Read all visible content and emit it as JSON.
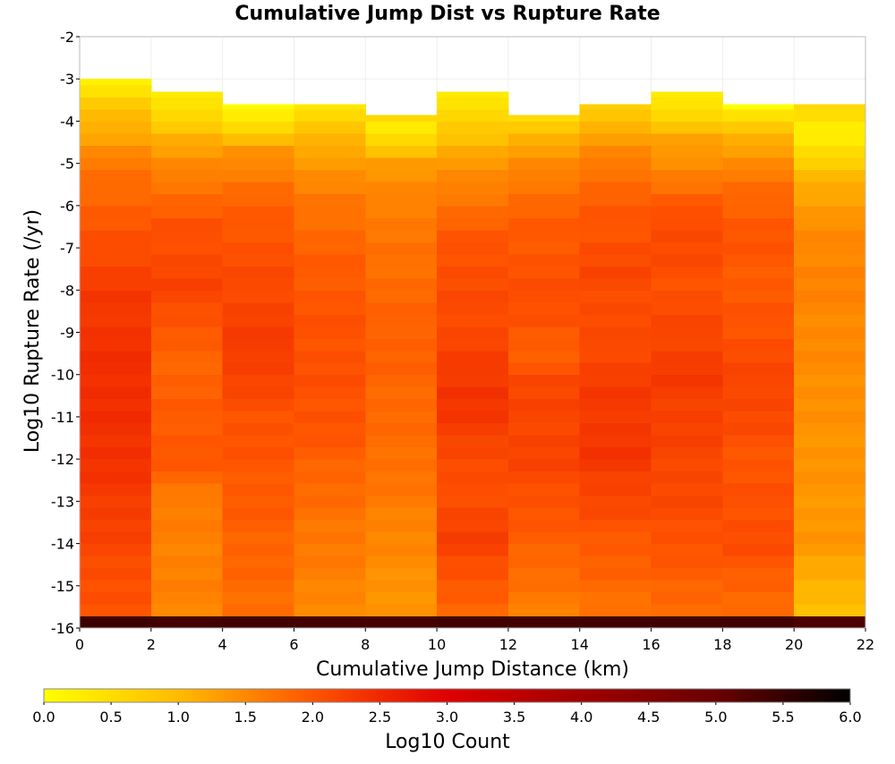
{
  "chart_data": {
    "type": "heatmap",
    "title": "Cumulative Jump Dist vs Rupture Rate",
    "xlabel": "Cumulative Jump Distance (km)",
    "ylabel": "Log10 Rupture Rate (/yr)",
    "xlim": [
      0,
      22
    ],
    "ylim": [
      -16,
      -2
    ],
    "x_ticks": [
      0,
      2,
      4,
      6,
      8,
      10,
      12,
      14,
      16,
      18,
      20,
      22
    ],
    "y_ticks": [
      -2,
      -3,
      -4,
      -5,
      -6,
      -7,
      -8,
      -9,
      -10,
      -11,
      -12,
      -13,
      -14,
      -15,
      -16
    ],
    "x_bin_edges": [
      0,
      2,
      4,
      6,
      8,
      10,
      12,
      14,
      16,
      18,
      20,
      22
    ],
    "y_bin_size": 0.2857,
    "column_profiles": [
      {
        "x_range": [
          0,
          2
        ],
        "profile": [
          [
            -15.9,
            6.0
          ],
          [
            -15.6,
            2.0
          ],
          [
            -12,
            2.4
          ],
          [
            -10,
            2.45
          ],
          [
            -8,
            2.3
          ],
          [
            -6,
            1.9
          ],
          [
            -5,
            1.65
          ],
          [
            -4.3,
            1.2
          ],
          [
            -3.6,
            0.8
          ],
          [
            -3.1,
            0.2
          ]
        ]
      },
      {
        "x_range": [
          2,
          4
        ],
        "profile": [
          [
            -15.9,
            6.0
          ],
          [
            -15.6,
            1.55
          ],
          [
            -13,
            1.6
          ],
          [
            -12,
            2.0
          ],
          [
            -9.5,
            1.85
          ],
          [
            -8,
            2.2
          ],
          [
            -6.5,
            2.05
          ],
          [
            -5.5,
            1.7
          ],
          [
            -4.5,
            1.2
          ],
          [
            -3.9,
            0.6
          ],
          [
            -3.3,
            0.25
          ]
        ]
      },
      {
        "x_range": [
          4,
          6
        ],
        "profile": [
          [
            -15.9,
            6.0
          ],
          [
            -15.6,
            1.75
          ],
          [
            -13,
            1.95
          ],
          [
            -11,
            2.05
          ],
          [
            -9.5,
            2.3
          ],
          [
            -8,
            2.15
          ],
          [
            -6.5,
            2.0
          ],
          [
            -5.5,
            1.75
          ],
          [
            -4.6,
            1.3
          ],
          [
            -4.2,
            0.6
          ],
          [
            -3.6,
            0.0
          ]
        ]
      },
      {
        "x_range": [
          6,
          8
        ],
        "profile": [
          [
            -15.9,
            6.0
          ],
          [
            -15.6,
            1.5
          ],
          [
            -13,
            1.75
          ],
          [
            -11,
            2.05
          ],
          [
            -9,
            2.05
          ],
          [
            -7.5,
            1.95
          ],
          [
            -6,
            1.7
          ],
          [
            -5,
            1.35
          ],
          [
            -4.2,
            0.9
          ],
          [
            -3.6,
            0.3
          ]
        ]
      },
      {
        "x_range": [
          8,
          10
        ],
        "profile": [
          [
            -15.9,
            6.0
          ],
          [
            -15.6,
            1.35
          ],
          [
            -14,
            1.5
          ],
          [
            -12,
            1.75
          ],
          [
            -9,
            1.9
          ],
          [
            -7.5,
            1.75
          ],
          [
            -6,
            1.6
          ],
          [
            -5,
            1.3
          ],
          [
            -4.6,
            0.8
          ],
          [
            -4.2,
            0.25
          ],
          [
            -3.9,
            0.6
          ]
        ]
      },
      {
        "x_range": [
          10,
          12
        ],
        "profile": [
          [
            -15.9,
            6.0
          ],
          [
            -15.6,
            1.8
          ],
          [
            -14,
            2.25
          ],
          [
            -12.5,
            2.05
          ],
          [
            -10.5,
            2.4
          ],
          [
            -9,
            2.15
          ],
          [
            -7,
            2.05
          ],
          [
            -6,
            1.75
          ],
          [
            -5,
            1.35
          ],
          [
            -4.2,
            0.8
          ],
          [
            -3.4,
            0.3
          ]
        ]
      },
      {
        "x_range": [
          12,
          14
        ],
        "profile": [
          [
            -15.9,
            6.0
          ],
          [
            -15.6,
            1.6
          ],
          [
            -14,
            1.9
          ],
          [
            -12,
            2.2
          ],
          [
            -10,
            2.15
          ],
          [
            -9.5,
            1.85
          ],
          [
            -8.5,
            2.1
          ],
          [
            -6.5,
            1.95
          ],
          [
            -5.5,
            1.7
          ],
          [
            -4.5,
            1.2
          ],
          [
            -3.9,
            0.5
          ]
        ]
      },
      {
        "x_range": [
          14,
          16
        ],
        "profile": [
          [
            -15.9,
            6.0
          ],
          [
            -15.6,
            1.7
          ],
          [
            -13.5,
            2.05
          ],
          [
            -12,
            2.35
          ],
          [
            -10.5,
            2.3
          ],
          [
            -9,
            2.1
          ],
          [
            -7.5,
            2.15
          ],
          [
            -6.3,
            2.0
          ],
          [
            -5.2,
            1.75
          ],
          [
            -4.4,
            1.3
          ],
          [
            -3.7,
            0.7
          ]
        ]
      },
      {
        "x_range": [
          16,
          18
        ],
        "profile": [
          [
            -15.9,
            6.0
          ],
          [
            -15.6,
            1.8
          ],
          [
            -13.5,
            2.1
          ],
          [
            -11.5,
            2.2
          ],
          [
            -10,
            2.3
          ],
          [
            -8,
            2.05
          ],
          [
            -6.3,
            2.15
          ],
          [
            -5.5,
            1.7
          ],
          [
            -4.4,
            1.2
          ],
          [
            -3.9,
            0.6
          ],
          [
            -3.4,
            0.3
          ]
        ]
      },
      {
        "x_range": [
          18,
          20
        ],
        "profile": [
          [
            -15.9,
            6.0
          ],
          [
            -15.6,
            1.75
          ],
          [
            -14,
            2.1
          ],
          [
            -12,
            2.0
          ],
          [
            -10.5,
            2.2
          ],
          [
            -8,
            1.95
          ],
          [
            -6.5,
            2.0
          ],
          [
            -5.5,
            1.75
          ],
          [
            -4.5,
            1.2
          ],
          [
            -3.9,
            0.55
          ],
          [
            -3.7,
            0.0
          ]
        ]
      },
      {
        "x_range": [
          20,
          22
        ],
        "profile": [
          [
            -15.9,
            6.0
          ],
          [
            -15.6,
            0.9
          ],
          [
            -14,
            1.35
          ],
          [
            -11,
            1.4
          ],
          [
            -9,
            1.5
          ],
          [
            -7.5,
            1.55
          ],
          [
            -6.5,
            1.45
          ],
          [
            -5.5,
            1.15
          ],
          [
            -4.8,
            0.55
          ],
          [
            -4.2,
            0.2
          ],
          [
            -3.8,
            0.55
          ]
        ]
      }
    ],
    "column_tops": [
      -3.0,
      -3.3,
      -3.6,
      -3.6,
      -3.85,
      -3.3,
      -3.85,
      -3.6,
      -3.3,
      -3.6,
      -3.6
    ],
    "column_gaps": [
      {
        "x_range": [
          2,
          4
        ],
        "y_range": [
          -3.85,
          -3.6
        ]
      },
      {
        "x_range": [
          16,
          18
        ],
        "y_range": [
          -3.85,
          -3.6
        ]
      }
    ],
    "colorbar": {
      "label": "Log10 Count",
      "range": [
        0,
        6
      ],
      "ticks": [
        "0.0",
        "0.5",
        "1.0",
        "1.5",
        "2.0",
        "2.5",
        "3.0",
        "3.5",
        "4.0",
        "4.5",
        "5.0",
        "5.5",
        "6.0"
      ],
      "colors": [
        [
          0,
          "#ffff00"
        ],
        [
          1,
          "#ffbb00"
        ],
        [
          1.5,
          "#ff8800"
        ],
        [
          2,
          "#ff5500"
        ],
        [
          2.5,
          "#f02800"
        ],
        [
          3,
          "#e00000"
        ],
        [
          4,
          "#a00000"
        ],
        [
          5,
          "#6a0000"
        ],
        [
          6,
          "#000000"
        ]
      ]
    }
  }
}
